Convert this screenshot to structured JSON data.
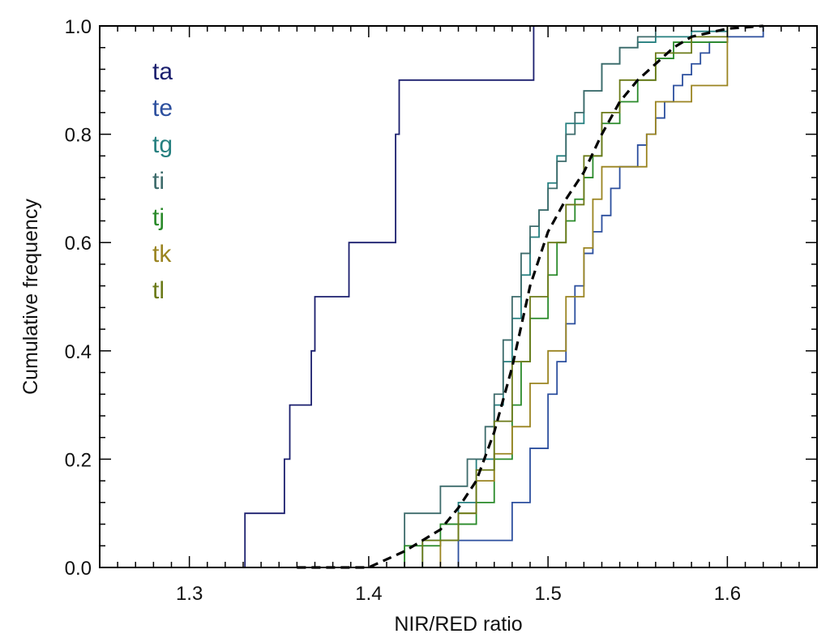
{
  "chart_data": {
    "type": "line",
    "title": "",
    "xlabel": "NIR/RED ratio",
    "ylabel": "Cumulative frequency",
    "xlim": [
      1.25,
      1.65
    ],
    "ylim": [
      0.0,
      1.0
    ],
    "x_ticks": [
      1.3,
      1.4,
      1.5,
      1.6
    ],
    "x_tick_labels": [
      "1.3",
      "1.4",
      "1.5",
      "1.6"
    ],
    "y_ticks": [
      0.0,
      0.2,
      0.4,
      0.6,
      0.8,
      1.0
    ],
    "y_tick_labels": [
      "0.0",
      "0.2",
      "0.4",
      "0.6",
      "0.8",
      "1.0"
    ],
    "grid": false,
    "legend_position": "top-left",
    "series": [
      {
        "name": "ta",
        "color": "#1b1f6e",
        "step": true,
        "x": [
          1.25,
          1.331,
          1.331,
          1.353,
          1.353,
          1.356,
          1.356,
          1.368,
          1.368,
          1.37,
          1.37,
          1.389,
          1.389,
          1.415,
          1.415,
          1.417,
          1.417,
          1.492,
          1.492,
          1.65
        ],
        "y": [
          0.0,
          0.0,
          0.1,
          0.1,
          0.2,
          0.2,
          0.3,
          0.3,
          0.4,
          0.4,
          0.5,
          0.5,
          0.6,
          0.6,
          0.8,
          0.8,
          0.9,
          0.9,
          1.0,
          1.0
        ]
      },
      {
        "name": "te",
        "color": "#2c4f9e",
        "step": true,
        "x": [
          1.45,
          1.45,
          1.48,
          1.49,
          1.5,
          1.505,
          1.51,
          1.515,
          1.52,
          1.525,
          1.53,
          1.535,
          1.54,
          1.545,
          1.55,
          1.555,
          1.56,
          1.565,
          1.57,
          1.575,
          1.58,
          1.585,
          1.59,
          1.6,
          1.62,
          1.65
        ],
        "y": [
          0.0,
          0.05,
          0.12,
          0.22,
          0.32,
          0.38,
          0.45,
          0.52,
          0.58,
          0.62,
          0.65,
          0.7,
          0.74,
          0.74,
          0.78,
          0.8,
          0.83,
          0.86,
          0.89,
          0.91,
          0.93,
          0.95,
          0.97,
          0.98,
          1.0,
          1.0
        ]
      },
      {
        "name": "tg",
        "color": "#257f7f",
        "step": true,
        "x": [
          1.41,
          1.43,
          1.45,
          1.46,
          1.47,
          1.475,
          1.48,
          1.485,
          1.49,
          1.495,
          1.5,
          1.505,
          1.51,
          1.52,
          1.53,
          1.54,
          1.55,
          1.56,
          1.58,
          1.6,
          1.65
        ],
        "y": [
          0.0,
          0.05,
          0.12,
          0.2,
          0.3,
          0.38,
          0.46,
          0.54,
          0.61,
          0.66,
          0.71,
          0.76,
          0.82,
          0.88,
          0.93,
          0.96,
          0.97,
          0.98,
          0.99,
          1.0,
          1.0
        ]
      },
      {
        "name": "ti",
        "color": "#3d6b6b",
        "step": true,
        "x": [
          1.41,
          1.42,
          1.44,
          1.455,
          1.465,
          1.47,
          1.475,
          1.48,
          1.485,
          1.49,
          1.495,
          1.5,
          1.505,
          1.51,
          1.515,
          1.52,
          1.53,
          1.54,
          1.55,
          1.56,
          1.58,
          1.65
        ],
        "y": [
          0.0,
          0.1,
          0.15,
          0.2,
          0.26,
          0.32,
          0.42,
          0.5,
          0.58,
          0.63,
          0.66,
          0.7,
          0.75,
          0.8,
          0.84,
          0.88,
          0.93,
          0.96,
          0.98,
          1.0,
          1.0,
          1.0
        ]
      },
      {
        "name": "tj",
        "color": "#2a8a2a",
        "step": true,
        "x": [
          1.4,
          1.42,
          1.44,
          1.46,
          1.47,
          1.48,
          1.485,
          1.49,
          1.5,
          1.505,
          1.51,
          1.515,
          1.52,
          1.525,
          1.53,
          1.54,
          1.55,
          1.56,
          1.57,
          1.6,
          1.65
        ],
        "y": [
          0.0,
          0.04,
          0.08,
          0.12,
          0.2,
          0.3,
          0.38,
          0.46,
          0.54,
          0.6,
          0.64,
          0.68,
          0.72,
          0.76,
          0.82,
          0.86,
          0.9,
          0.94,
          0.97,
          1.0,
          1.0
        ]
      },
      {
        "name": "tk",
        "color": "#9a8420",
        "step": true,
        "x": [
          1.4,
          1.44,
          1.45,
          1.46,
          1.47,
          1.48,
          1.49,
          1.5,
          1.51,
          1.52,
          1.525,
          1.53,
          1.54,
          1.55,
          1.555,
          1.56,
          1.58,
          1.6,
          1.65
        ],
        "y": [
          0.0,
          0.05,
          0.1,
          0.16,
          0.21,
          0.26,
          0.34,
          0.4,
          0.5,
          0.59,
          0.68,
          0.74,
          0.74,
          0.74,
          0.8,
          0.86,
          0.89,
          1.0,
          1.0
        ]
      },
      {
        "name": "tl",
        "color": "#6b7a18",
        "step": true,
        "x": [
          1.41,
          1.43,
          1.45,
          1.46,
          1.47,
          1.48,
          1.49,
          1.5,
          1.51,
          1.52,
          1.53,
          1.54,
          1.56,
          1.58,
          1.6,
          1.65
        ],
        "y": [
          0.0,
          0.05,
          0.1,
          0.18,
          0.27,
          0.38,
          0.5,
          0.6,
          0.67,
          0.76,
          0.84,
          0.9,
          0.95,
          0.98,
          1.0,
          1.0
        ]
      },
      {
        "name": "",
        "color": "#000000",
        "dashed": true,
        "step": false,
        "x": [
          1.36,
          1.4,
          1.42,
          1.44,
          1.45,
          1.46,
          1.47,
          1.48,
          1.49,
          1.5,
          1.51,
          1.52,
          1.53,
          1.54,
          1.55,
          1.56,
          1.57,
          1.58,
          1.6,
          1.62
        ],
        "y": [
          0.0,
          0.0,
          0.03,
          0.07,
          0.11,
          0.16,
          0.25,
          0.37,
          0.52,
          0.62,
          0.68,
          0.73,
          0.8,
          0.86,
          0.9,
          0.93,
          0.96,
          0.98,
          0.995,
          1.0
        ]
      }
    ]
  }
}
